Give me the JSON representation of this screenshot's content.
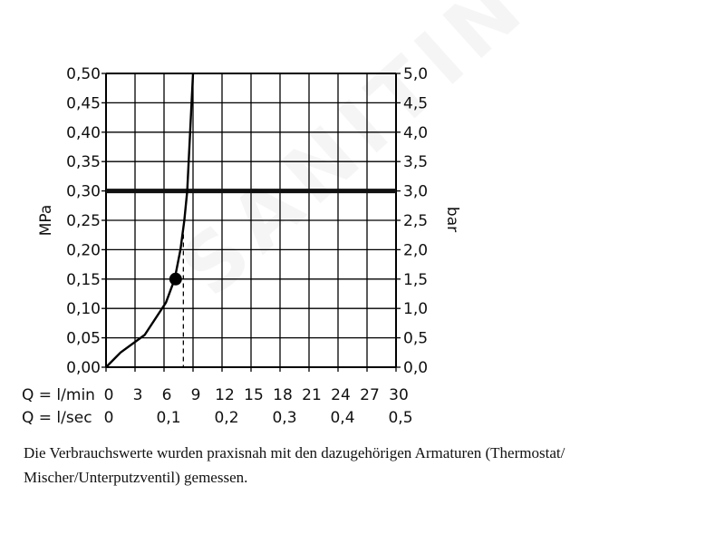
{
  "chart_data": {
    "type": "line",
    "left_axis": {
      "label": "MPa",
      "range": [
        0,
        0.5
      ],
      "ticks": [
        "0,00",
        "0,05",
        "0,10",
        "0,15",
        "0,20",
        "0,25",
        "0,30",
        "0,35",
        "0,40",
        "0,45",
        "0,50"
      ]
    },
    "right_axis": {
      "label": "bar",
      "ticks": [
        "0,0",
        "0,5",
        "1,0",
        "1,5",
        "2,0",
        "2,5",
        "3,0",
        "3,5",
        "4,0",
        "4,5",
        "5,0"
      ]
    },
    "x_axis": {
      "range": [
        0,
        30
      ],
      "row1": {
        "label": "Q = l/min",
        "ticks": [
          0,
          3,
          6,
          9,
          12,
          15,
          18,
          21,
          24,
          27,
          30
        ]
      },
      "row2": {
        "label": "Q = l/sec",
        "ticks": [
          "0",
          "0,1",
          "0,2",
          "0,3",
          "0,4",
          "0,5"
        ]
      }
    },
    "series": [
      {
        "x": [
          0,
          1.5,
          4,
          6.2,
          7.1,
          7.7,
          8.1,
          8.4,
          8.7,
          9.0
        ],
        "y": [
          0,
          0.025,
          0.055,
          0.11,
          0.15,
          0.2,
          0.25,
          0.3,
          0.4,
          0.5
        ]
      }
    ],
    "reference_line": {
      "y": 0.3
    },
    "marker": {
      "x": 7.2,
      "y": 0.15
    },
    "dashed_drop": {
      "x": 8.0,
      "y_top": 0.24
    },
    "grid": true
  },
  "caption": {
    "line1": "Die Verbrauchswerte wurden praxisnah mit den dazugehörigen Armaturen (Thermostat/",
    "line2": "Mischer/Unterputzventil) gemessen."
  },
  "watermark": "SANITINO"
}
